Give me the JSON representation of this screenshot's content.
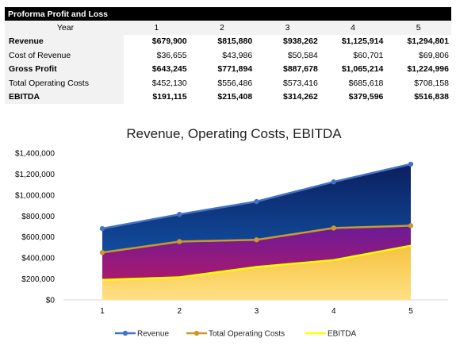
{
  "table": {
    "title": "Proforma Profit and Loss",
    "header_label": "Year",
    "years": [
      "1",
      "2",
      "3",
      "4",
      "5"
    ],
    "rows": [
      {
        "label": "Revenue",
        "bold": true,
        "values": [
          "$679,900",
          "$815,880",
          "$938,262",
          "$1,125,914",
          "$1,294,801"
        ]
      },
      {
        "label": "Cost of Revenue",
        "bold": false,
        "values": [
          "$36,655",
          "$43,986",
          "$50,584",
          "$60,701",
          "$69,806"
        ]
      },
      {
        "label": "Gross Profit",
        "bold": true,
        "values": [
          "$643,245",
          "$771,894",
          "$887,678",
          "$1,065,214",
          "$1,224,996"
        ]
      },
      {
        "label": "Total Operating Costs",
        "bold": false,
        "values": [
          "$452,130",
          "$556,486",
          "$573,416",
          "$685,618",
          "$708,158"
        ]
      },
      {
        "label": "EBITDA",
        "bold": true,
        "values": [
          "$191,115",
          "$215,408",
          "$314,262",
          "$379,596",
          "$516,838"
        ]
      }
    ]
  },
  "chart_data": {
    "type": "area",
    "title": "Revenue, Operating Costs, EBITDA",
    "x": [
      "1",
      "2",
      "3",
      "4",
      "5"
    ],
    "ylim": [
      0,
      1400000
    ],
    "yticks": [
      {
        "value": 0,
        "label": "$0"
      },
      {
        "value": 200000,
        "label": "$200,000"
      },
      {
        "value": 400000,
        "label": "$400,000"
      },
      {
        "value": 600000,
        "label": "$600,000"
      },
      {
        "value": 800000,
        "label": "$800,000"
      },
      {
        "value": 1000000,
        "label": "$1,000,000"
      },
      {
        "value": 1200000,
        "label": "$1,200,000"
      },
      {
        "value": 1400000,
        "label": "$1,400,000"
      }
    ],
    "grid": false,
    "legend_position": "bottom",
    "series": [
      {
        "name": "Revenue",
        "values": [
          679900,
          815880,
          938262,
          1125914,
          1294801
        ],
        "line_color": "#4472c4",
        "fill_top": "#0b1f5e",
        "fill_bottom": "#1565c0"
      },
      {
        "name": "Total Operating Costs",
        "values": [
          452130,
          556486,
          573416,
          685618,
          708158
        ],
        "line_color": "#c99a2e",
        "fill_top": "#6a1b9a",
        "fill_bottom": "#c2185b"
      },
      {
        "name": "EBITDA",
        "values": [
          191115,
          215408,
          314262,
          379596,
          516838
        ],
        "line_color": "#ffff00",
        "fill_top": "#f5c242",
        "fill_bottom": "#ffe082"
      }
    ]
  }
}
